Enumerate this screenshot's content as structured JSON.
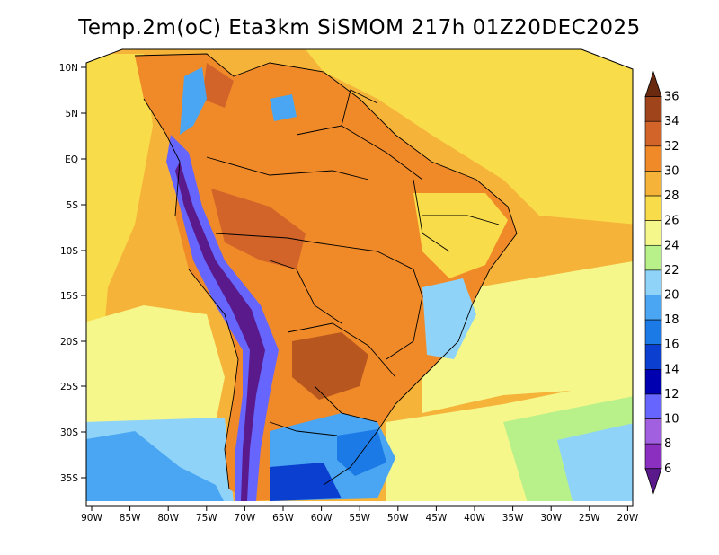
{
  "title": "Temp.2m(oC) Eta3km SiSMOM 217h 01Z20DEC2025",
  "lat_labels": [
    "10N",
    "5N",
    "EQ",
    "5S",
    "10S",
    "15S",
    "20S",
    "25S",
    "30S",
    "35S"
  ],
  "lon_labels": [
    "90W",
    "85W",
    "80W",
    "75W",
    "70W",
    "65W",
    "60W",
    "55W",
    "50W",
    "45W",
    "40W",
    "35W",
    "30W",
    "25W",
    "20W"
  ],
  "colorbar": {
    "labels": [
      "6",
      "8",
      "10",
      "12",
      "14",
      "16",
      "18",
      "20",
      "22",
      "24",
      "26",
      "28",
      "30",
      "32",
      "34",
      "36"
    ],
    "colors": [
      "#5a1a8c",
      "#8b2fc0",
      "#a060e0",
      "#6666ff",
      "#0000b0",
      "#0a3fcf",
      "#1c7ae6",
      "#4aa6f2",
      "#8fd4f8",
      "#b8f08a",
      "#f5f78a",
      "#f9dc4a",
      "#f5b33a",
      "#f08a28",
      "#d2642a",
      "#a0441c",
      "#6a2a10"
    ]
  },
  "colors": {
    "ocean_warm": "#f9dc4a",
    "ocean_mild": "#f5f78a",
    "ocean_cool": "#b8f08a",
    "ocean_cold": "#8fd4f8",
    "land_hot": "#f08a28",
    "land_very_hot": "#b8561f",
    "andes_cold": "#5a1a8c",
    "southern_cold": "#1c7ae6"
  }
}
